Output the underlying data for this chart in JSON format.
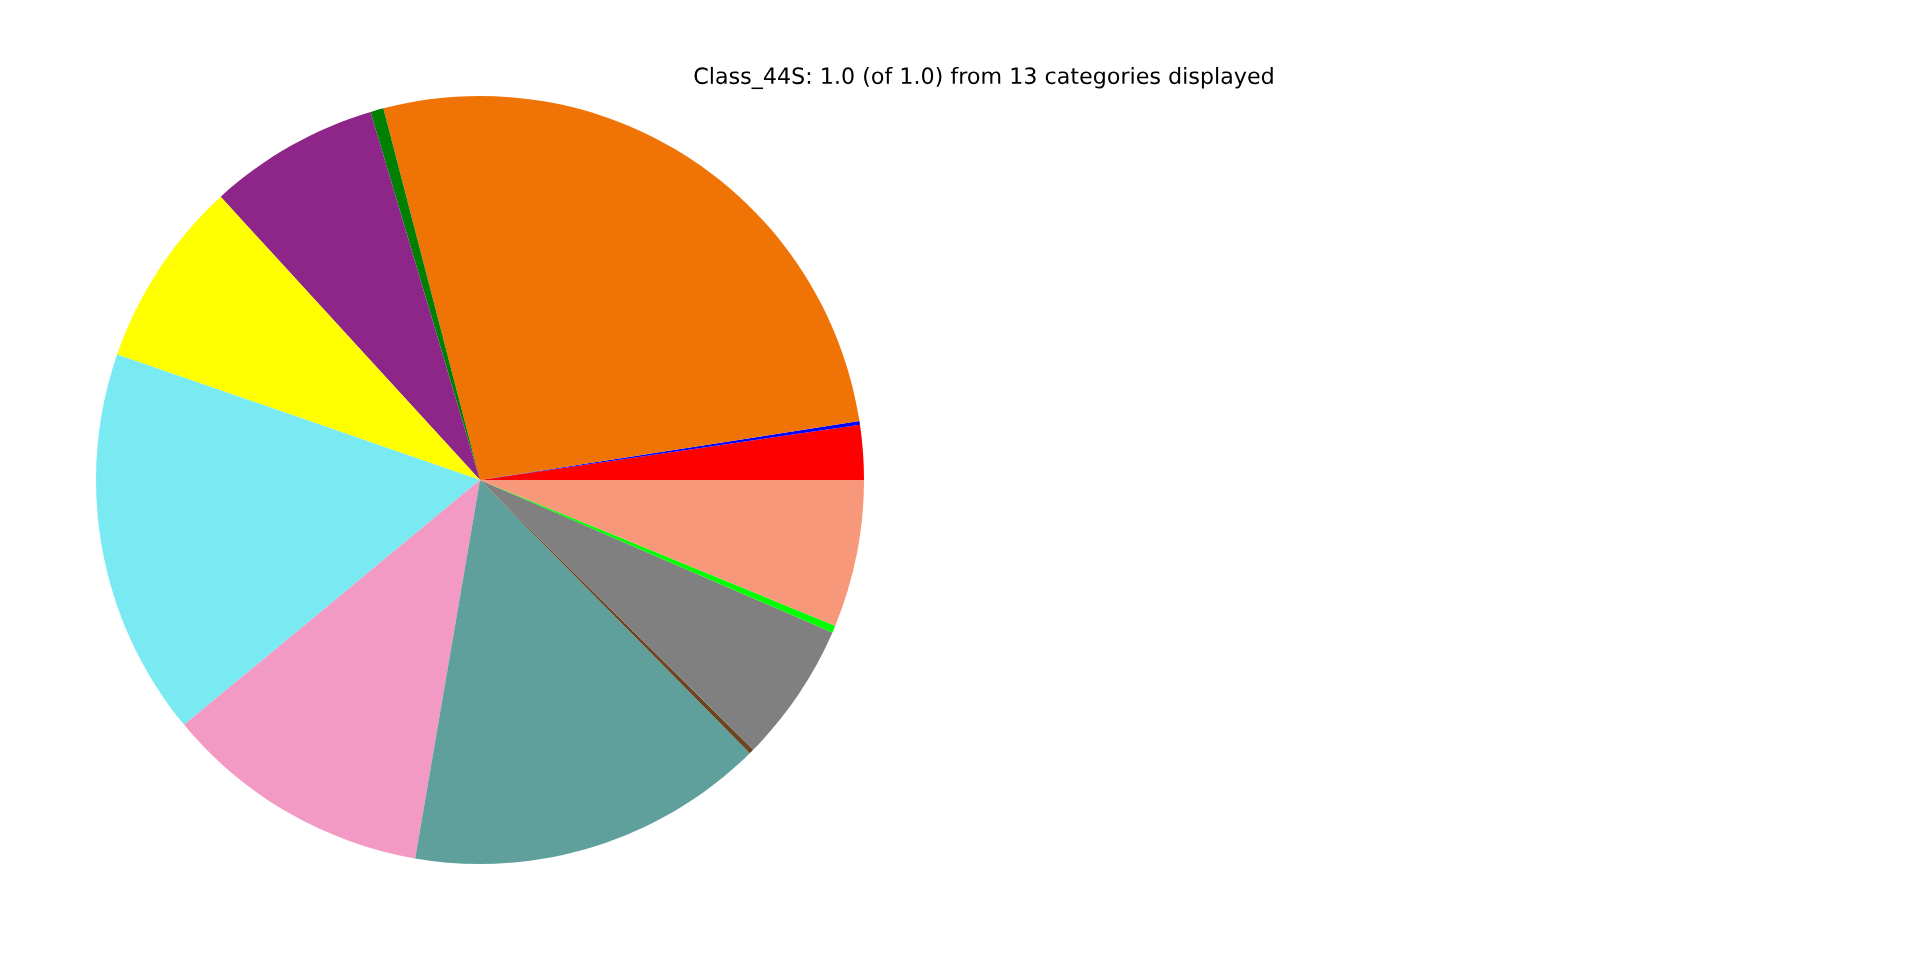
{
  "chart_data": {
    "type": "pie",
    "title": "Class_44S: 1.0 (of 1.0) from 13 categories displayed",
    "categories": [
      null,
      null,
      null,
      null,
      null,
      null,
      null,
      null,
      null,
      null,
      null,
      null,
      null
    ],
    "values": [
      2.3,
      0.15,
      26.6,
      0.55,
      7.2,
      7.9,
      16.3,
      11.3,
      15.1,
      0.2,
      5.9,
      0.3,
      6.2
    ],
    "colors": [
      "#ff0000",
      "#0000ff",
      "#f07305",
      "#008000",
      "#8e2689",
      "#ffff00",
      "#7aeaf2",
      "#f29ac4",
      "#5fa09c",
      "#6b4420",
      "#808080",
      "#00ff00",
      "#f7987a"
    ]
  }
}
